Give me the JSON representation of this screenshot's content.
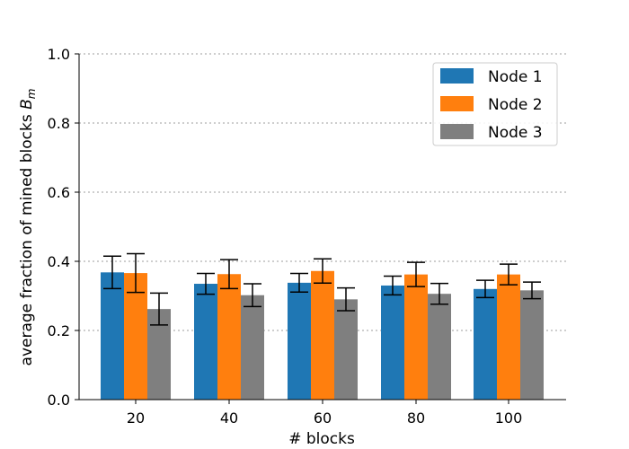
{
  "chart_data": {
    "type": "bar",
    "title": "",
    "xlabel": "# blocks",
    "ylabel": "average fraction of mined blocks B_m",
    "ylabel_main": "average fraction of mined blocks ",
    "ylabel_symbol": "B",
    "ylabel_subscript": "m",
    "categories": [
      "20",
      "40",
      "60",
      "80",
      "100"
    ],
    "ylim": [
      0,
      1
    ],
    "yticks": [
      "0.0",
      "0.2",
      "0.4",
      "0.6",
      "0.8",
      "1.0"
    ],
    "grid": "horizontal dotted",
    "legend_position": "top-right",
    "series": [
      {
        "name": "Node 1",
        "color": "#1f77b4",
        "values": [
          0.368,
          0.335,
          0.338,
          0.33,
          0.32
        ],
        "errors": [
          0.047,
          0.03,
          0.027,
          0.027,
          0.025
        ]
      },
      {
        "name": "Node 2",
        "color": "#ff7f0e",
        "values": [
          0.366,
          0.363,
          0.372,
          0.362,
          0.362
        ],
        "errors": [
          0.056,
          0.042,
          0.035,
          0.035,
          0.03
        ]
      },
      {
        "name": "Node 3",
        "color": "#7f7f7f",
        "values": [
          0.262,
          0.302,
          0.29,
          0.306,
          0.316
        ],
        "errors": [
          0.046,
          0.033,
          0.033,
          0.03,
          0.024
        ]
      }
    ]
  }
}
